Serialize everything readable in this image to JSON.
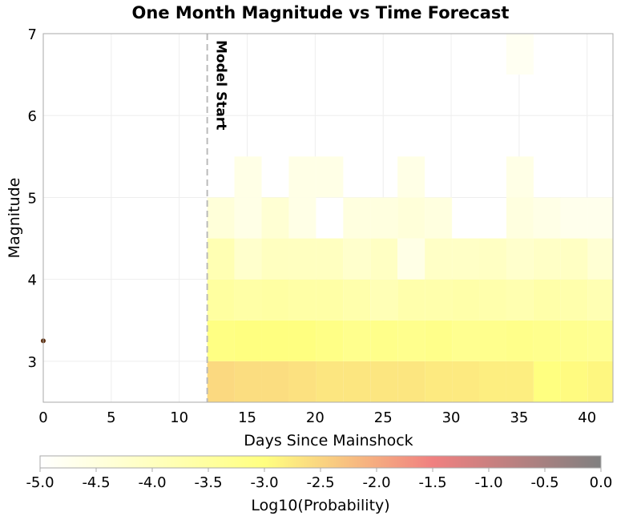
{
  "chart_data": {
    "type": "heatmap",
    "title": "One Month Magnitude vs Time Forecast",
    "xlabel": "Days Since Mainshock",
    "ylabel": "Magnitude",
    "xlim": [
      0,
      41.9
    ],
    "ylim": [
      2.5,
      7
    ],
    "x_ticks": [
      0,
      5,
      10,
      15,
      20,
      25,
      30,
      35,
      40
    ],
    "y_ticks": [
      3,
      4,
      5,
      6,
      7
    ],
    "grid": true,
    "model_start": {
      "day": 12.06,
      "label": "Model Start"
    },
    "x_bin_starts": [
      12.06,
      14.06,
      16.06,
      18.06,
      20.06,
      22.06,
      24.06,
      26.06,
      28.06,
      30.06,
      32.06,
      34.06,
      36.06,
      38.06,
      40.06
    ],
    "x_bin_width": 2,
    "mag_bin_starts": [
      2.5,
      3.0,
      3.5,
      4.0,
      4.5,
      5.0,
      5.5,
      6.0,
      6.5
    ],
    "mag_bin_width": 0.5,
    "log10_probability": [
      [
        -2.55,
        -2.6,
        -2.6,
        -2.65,
        -2.7,
        -2.7,
        -2.7,
        -2.7,
        -2.75,
        -2.75,
        -2.8,
        -2.8,
        -3.0,
        -2.95,
        -2.9
      ],
      [
        -3.05,
        -3.0,
        -3.0,
        -3.0,
        -3.1,
        -3.2,
        -3.15,
        -3.2,
        -3.15,
        -3.25,
        -3.2,
        -3.15,
        -3.2,
        -3.25,
        -3.3
      ],
      [
        -3.5,
        -3.6,
        -3.55,
        -3.6,
        -3.6,
        -3.7,
        -3.85,
        -3.7,
        -3.7,
        -3.65,
        -3.7,
        -3.75,
        -3.65,
        -3.7,
        -3.8
      ],
      [
        -3.8,
        -4.2,
        -4.0,
        -4.0,
        -4.0,
        -4.2,
        -4.05,
        -4.6,
        -4.1,
        -4.1,
        -4.05,
        -4.2,
        -4.1,
        -4.05,
        -4.3
      ],
      [
        -4.4,
        -4.6,
        -4.3,
        -4.6,
        null,
        -4.5,
        -4.5,
        -4.4,
        -4.5,
        null,
        null,
        -4.5,
        -4.6,
        -4.7,
        -4.7
      ],
      [
        null,
        -4.6,
        null,
        -4.6,
        -4.6,
        null,
        null,
        -4.6,
        null,
        null,
        null,
        -4.6,
        null,
        null,
        null
      ],
      [
        null,
        null,
        null,
        null,
        null,
        null,
        null,
        null,
        null,
        null,
        null,
        null,
        null,
        null,
        null
      ],
      [
        null,
        null,
        null,
        null,
        null,
        null,
        null,
        null,
        null,
        null,
        null,
        null,
        null,
        null,
        null
      ],
      [
        null,
        null,
        null,
        null,
        null,
        null,
        null,
        null,
        null,
        null,
        null,
        -4.8,
        null,
        null,
        null
      ]
    ],
    "events": [
      {
        "day": 0,
        "magnitude": 3.25,
        "color": "#5a2a0a"
      }
    ],
    "colorbar": {
      "label": "Log10(Probability)",
      "range": [
        -5.0,
        0.0
      ],
      "ticks": [
        "-5.0",
        "-4.5",
        "-4.0",
        "-3.5",
        "-3.0",
        "-2.5",
        "-2.0",
        "-1.5",
        "-1.0",
        "-0.5",
        "0.0"
      ],
      "stops": [
        {
          "value": -5.0,
          "color": "#ffffff"
        },
        {
          "value": -3.0,
          "color": "#ffff80"
        },
        {
          "value": -1.5,
          "color": "#f08080"
        },
        {
          "value": 0.0,
          "color": "#808080"
        }
      ]
    }
  }
}
